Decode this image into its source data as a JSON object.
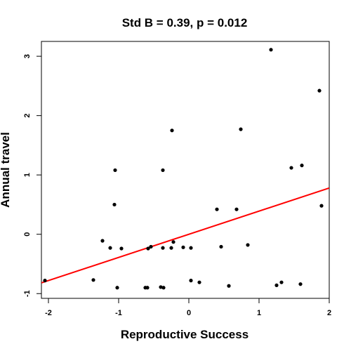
{
  "chart_data": {
    "type": "scatter",
    "title": "Std B = 0.39, p = 0.012",
    "xlabel": "Reproductive Success",
    "ylabel": "Annual travel",
    "xlim": [
      -2.1,
      2.0
    ],
    "ylim": [
      -1.08,
      3.25
    ],
    "xticks": [
      -2,
      -1,
      0,
      1,
      2
    ],
    "yticks": [
      -1,
      0,
      1,
      2,
      3
    ],
    "xtick_labels": [
      "-2",
      "-1",
      "0",
      "1",
      "2"
    ],
    "ytick_labels": [
      "-1",
      "0",
      "1",
      "2",
      "3"
    ],
    "grid": false,
    "legend": "none",
    "points": [
      {
        "x": -2.05,
        "y": -0.78
      },
      {
        "x": -1.36,
        "y": -0.77
      },
      {
        "x": -1.23,
        "y": -0.11
      },
      {
        "x": -1.12,
        "y": -0.23
      },
      {
        "x": -1.05,
        "y": 1.08
      },
      {
        "x": -1.06,
        "y": 0.5
      },
      {
        "x": -1.02,
        "y": -0.9
      },
      {
        "x": -0.96,
        "y": -0.24
      },
      {
        "x": -0.62,
        "y": -0.9
      },
      {
        "x": -0.59,
        "y": -0.9
      },
      {
        "x": -0.58,
        "y": -0.24
      },
      {
        "x": -0.54,
        "y": -0.21
      },
      {
        "x": -0.4,
        "y": -0.89
      },
      {
        "x": -0.36,
        "y": -0.9
      },
      {
        "x": -0.37,
        "y": -0.23
      },
      {
        "x": -0.37,
        "y": 1.08
      },
      {
        "x": -0.25,
        "y": -0.23
      },
      {
        "x": -0.24,
        "y": 1.75
      },
      {
        "x": -0.22,
        "y": -0.13
      },
      {
        "x": -0.08,
        "y": -0.22
      },
      {
        "x": 0.03,
        "y": -0.23
      },
      {
        "x": 0.03,
        "y": -0.78
      },
      {
        "x": 0.15,
        "y": -0.81
      },
      {
        "x": 0.4,
        "y": 0.42
      },
      {
        "x": 0.46,
        "y": -0.21
      },
      {
        "x": 0.57,
        "y": -0.87
      },
      {
        "x": 0.68,
        "y": 0.42
      },
      {
        "x": 0.74,
        "y": 1.77
      },
      {
        "x": 0.84,
        "y": -0.18
      },
      {
        "x": 1.17,
        "y": 3.11
      },
      {
        "x": 1.25,
        "y": -0.86
      },
      {
        "x": 1.32,
        "y": -0.81
      },
      {
        "x": 1.46,
        "y": 1.12
      },
      {
        "x": 1.59,
        "y": -0.84
      },
      {
        "x": 1.61,
        "y": 1.16
      },
      {
        "x": 1.86,
        "y": 2.42
      },
      {
        "x": 1.89,
        "y": 0.48
      }
    ],
    "fit_line": {
      "intercept": 0.0,
      "slope": 0.39,
      "color": "#ff0000"
    },
    "point_color": "#000000"
  }
}
